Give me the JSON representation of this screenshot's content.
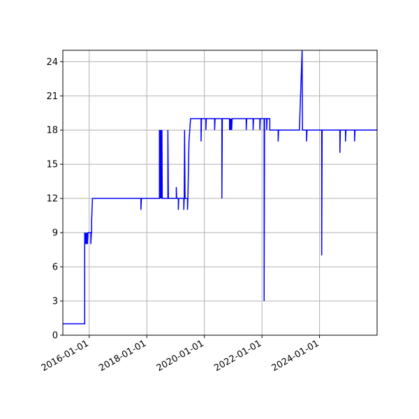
{
  "chart_data": {
    "type": "line",
    "title": "",
    "xlabel": "",
    "ylabel": "",
    "grid": true,
    "legend": "none",
    "x_axis": {
      "kind": "date",
      "range": [
        "2015-02-01",
        "2025-12-31"
      ],
      "ticks": [
        "2016-01-01",
        "2018-01-01",
        "2020-01-01",
        "2022-01-01",
        "2024-01-01"
      ]
    },
    "y_axis": {
      "range": [
        0,
        25
      ],
      "ticks": [
        0,
        3,
        6,
        9,
        12,
        15,
        18,
        21,
        24
      ]
    },
    "series": [
      {
        "color": "#0000ff",
        "points": [
          [
            "2015-02-01",
            1
          ],
          [
            "2015-11-05",
            1
          ],
          [
            "2015-11-05",
            9
          ],
          [
            "2015-11-12",
            8
          ],
          [
            "2015-11-18",
            9
          ],
          [
            "2015-11-26",
            8
          ],
          [
            "2015-12-03",
            9
          ],
          [
            "2015-12-10",
            8
          ],
          [
            "2015-12-17",
            9
          ],
          [
            "2016-01-01",
            9
          ],
          [
            "2016-01-22",
            9
          ],
          [
            "2016-01-22",
            8
          ],
          [
            "2016-01-29",
            9
          ],
          [
            "2016-02-01",
            9
          ],
          [
            "2016-02-01",
            10
          ],
          [
            "2016-02-06",
            11
          ],
          [
            "2016-02-12",
            12
          ],
          [
            "2017-10-18",
            12
          ],
          [
            "2017-10-18",
            11
          ],
          [
            "2017-10-25",
            12
          ],
          [
            "2018-06-10",
            12
          ],
          [
            "2018-06-10",
            18
          ],
          [
            "2018-06-14",
            12
          ],
          [
            "2018-06-18",
            18
          ],
          [
            "2018-06-22",
            12
          ],
          [
            "2018-06-26",
            18
          ],
          [
            "2018-06-30",
            12
          ],
          [
            "2018-07-05",
            18
          ],
          [
            "2018-07-09",
            12
          ],
          [
            "2018-07-12",
            18
          ],
          [
            "2018-07-16",
            12
          ],
          [
            "2018-09-25",
            12
          ],
          [
            "2018-09-25",
            18
          ],
          [
            "2018-10-02",
            12
          ],
          [
            "2019-01-10",
            12
          ],
          [
            "2019-01-10",
            13
          ],
          [
            "2019-01-15",
            12
          ],
          [
            "2019-02-05",
            12
          ],
          [
            "2019-02-05",
            11
          ],
          [
            "2019-02-10",
            12
          ],
          [
            "2019-04-15",
            12
          ],
          [
            "2019-04-15",
            11
          ],
          [
            "2019-04-20",
            12
          ],
          [
            "2019-04-25",
            18
          ],
          [
            "2019-05-01",
            12
          ],
          [
            "2019-06-01",
            12
          ],
          [
            "2019-06-01",
            11
          ],
          [
            "2019-06-06",
            12
          ],
          [
            "2019-06-20",
            17
          ],
          [
            "2019-07-10",
            19
          ],
          [
            "2019-11-20",
            19
          ],
          [
            "2019-11-20",
            17
          ],
          [
            "2019-11-26",
            19
          ],
          [
            "2020-01-20",
            19
          ],
          [
            "2020-01-20",
            18
          ],
          [
            "2020-01-26",
            19
          ],
          [
            "2020-05-10",
            19
          ],
          [
            "2020-05-10",
            18
          ],
          [
            "2020-05-16",
            19
          ],
          [
            "2020-08-10",
            19
          ],
          [
            "2020-08-10",
            12
          ],
          [
            "2020-08-16",
            19
          ],
          [
            "2020-11-15",
            19
          ],
          [
            "2020-11-15",
            18
          ],
          [
            "2020-11-21",
            19
          ],
          [
            "2020-11-28",
            18
          ],
          [
            "2020-12-05",
            19
          ],
          [
            "2020-12-12",
            18
          ],
          [
            "2020-12-18",
            19
          ],
          [
            "2021-06-15",
            19
          ],
          [
            "2021-06-15",
            18
          ],
          [
            "2021-06-21",
            19
          ],
          [
            "2021-09-10",
            19
          ],
          [
            "2021-09-10",
            18
          ],
          [
            "2021-09-16",
            19
          ],
          [
            "2021-12-05",
            19
          ],
          [
            "2021-12-05",
            18
          ],
          [
            "2021-12-11",
            19
          ],
          [
            "2022-01-28",
            19
          ],
          [
            "2022-01-28",
            3
          ],
          [
            "2022-02-03",
            19
          ],
          [
            "2022-03-01",
            19
          ],
          [
            "2022-03-01",
            18
          ],
          [
            "2022-03-07",
            19
          ],
          [
            "2022-04-10",
            19
          ],
          [
            "2022-04-10",
            18
          ],
          [
            "2022-07-25",
            18
          ],
          [
            "2022-07-25",
            17
          ],
          [
            "2022-07-31",
            18
          ],
          [
            "2023-04-20",
            18
          ],
          [
            "2023-05-25",
            25
          ],
          [
            "2023-05-29",
            18
          ],
          [
            "2023-07-20",
            18
          ],
          [
            "2023-07-20",
            17
          ],
          [
            "2023-07-26",
            18
          ],
          [
            "2024-01-28",
            18
          ],
          [
            "2024-01-28",
            7
          ],
          [
            "2024-02-03",
            18
          ],
          [
            "2024-09-15",
            18
          ],
          [
            "2024-09-15",
            16
          ],
          [
            "2024-09-21",
            18
          ],
          [
            "2024-11-25",
            18
          ],
          [
            "2024-11-25",
            17
          ],
          [
            "2024-12-01",
            18
          ],
          [
            "2025-03-20",
            18
          ],
          [
            "2025-03-20",
            17
          ],
          [
            "2025-03-26",
            18
          ],
          [
            "2025-12-31",
            18
          ]
        ]
      }
    ]
  }
}
